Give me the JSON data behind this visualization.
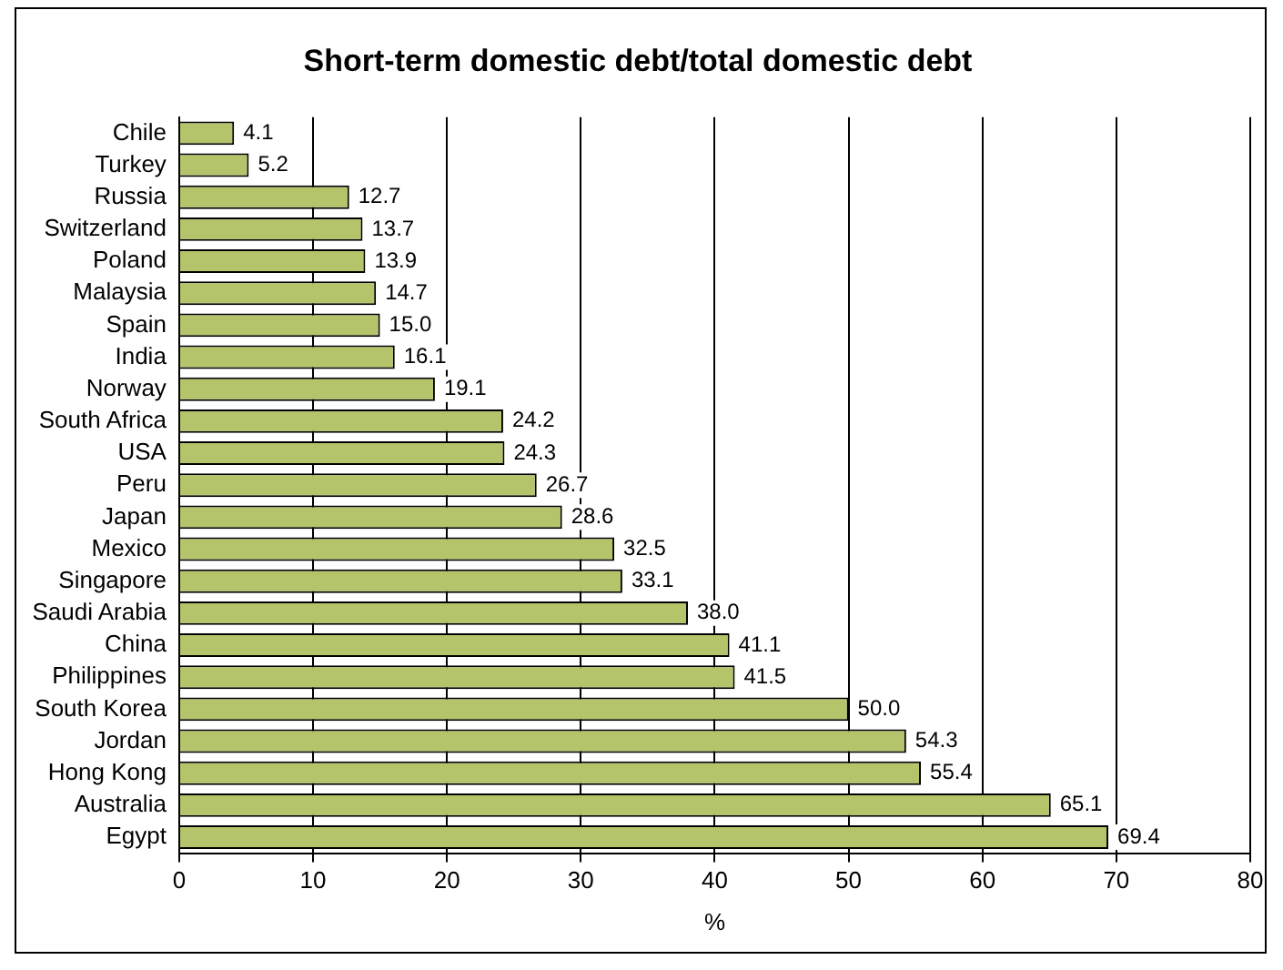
{
  "chart_data": {
    "type": "bar",
    "orientation": "horizontal",
    "title": "Short-term domestic debt/total domestic debt",
    "xlabel": "%",
    "categories": [
      "Chile",
      "Turkey",
      "Russia",
      "Switzerland",
      "Poland",
      "Malaysia",
      "Spain",
      "India",
      "Norway",
      "South Africa",
      "USA",
      "Peru",
      "Japan",
      "Mexico",
      "Singapore",
      "Saudi Arabia",
      "China",
      "Philippines",
      "South Korea",
      "Jordan",
      "Hong Kong",
      "Australia",
      "Egypt"
    ],
    "values": [
      4.1,
      5.2,
      12.7,
      13.7,
      13.9,
      14.7,
      15.0,
      16.1,
      19.1,
      24.2,
      24.3,
      26.7,
      28.6,
      32.5,
      33.1,
      38.0,
      41.1,
      41.5,
      50.0,
      54.3,
      55.4,
      65.1,
      69.4
    ],
    "value_labels": [
      "4.1",
      "5.2",
      "12.7",
      "13.7",
      "13.9",
      "14.7",
      "15.0",
      "16.1",
      "19.1",
      "24.2",
      "24.3",
      "26.7",
      "28.6",
      "32.5",
      "33.1",
      "38.0",
      "41.1",
      "41.5",
      "50.0",
      "54.3",
      "55.4",
      "65.1",
      "69.4"
    ],
    "color": "#b3c46a",
    "xlim": [
      0,
      80
    ],
    "xticks": [
      0,
      10,
      20,
      30,
      40,
      50,
      60,
      70,
      80
    ],
    "grid": "x",
    "legend": false
  }
}
